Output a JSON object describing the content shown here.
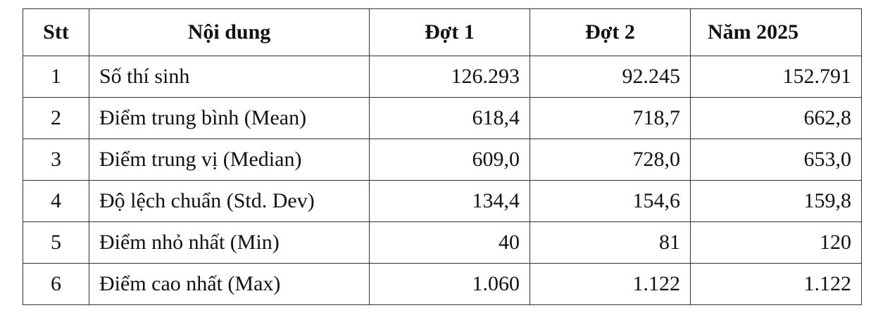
{
  "table": {
    "header": [
      "Stt",
      "Nội dung",
      "Đợt 1",
      "Đợt 2",
      "Năm 2025"
    ],
    "rows": [
      [
        "1",
        "Số thí sinh",
        "126.293",
        "92.245",
        "152.791"
      ],
      [
        "2",
        "Điểm trung bình (Mean)",
        "618,4",
        "718,7",
        "662,8"
      ],
      [
        "3",
        "Điểm trung vị (Median)",
        "609,0",
        "728,0",
        "653,0"
      ],
      [
        "4",
        "Độ lệch chuẩn (Std. Dev)",
        "134,4",
        "154,6",
        "159,8"
      ],
      [
        "5",
        "Điểm nhỏ nhất (Min)",
        "40",
        "81",
        "120"
      ],
      [
        "6",
        "Điểm cao nhất (Max)",
        "1.060",
        "1.122",
        "1.122"
      ]
    ]
  }
}
